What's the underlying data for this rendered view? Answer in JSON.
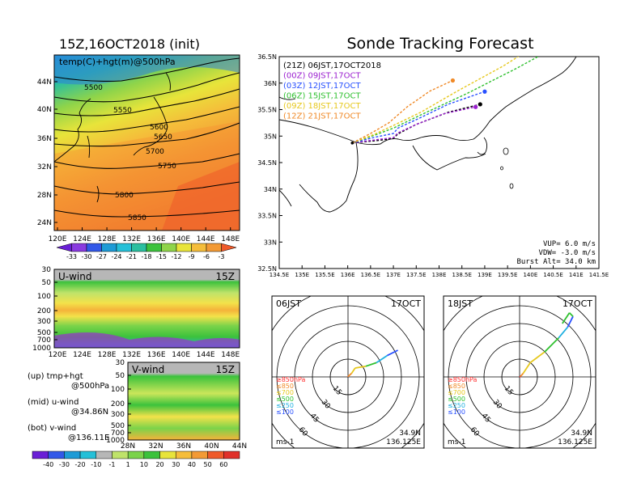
{
  "left_title": "15Z,16OCT2018 (init)",
  "right_title": "Sonde Tracking Forecast",
  "map500": {
    "label": "temp(C)+hgt(m)@500hPa",
    "lon_ticks": [
      "120E",
      "124E",
      "128E",
      "132E",
      "136E",
      "140E",
      "144E",
      "148E"
    ],
    "lat_ticks": [
      "44N",
      "40N",
      "36N",
      "32N",
      "28N",
      "24N"
    ],
    "contour_labels": [
      "5500",
      "5550",
      "5600",
      "5650",
      "5700",
      "5750",
      "5800",
      "5850"
    ]
  },
  "temp_colorbar": [
    "-33",
    "-30",
    "-27",
    "-24",
    "-21",
    "-18",
    "-15",
    "-12",
    "-9",
    "-6",
    "-3"
  ],
  "uwind": {
    "label": "U-wind",
    "time": "15Z",
    "p_ticks": [
      "30",
      "50",
      "100",
      "200",
      "300",
      "500",
      "700",
      "1000"
    ],
    "lon_ticks": [
      "120E",
      "124E",
      "128E",
      "132E",
      "136E",
      "140E",
      "144E",
      "148E"
    ]
  },
  "vwind": {
    "label": "V-wind",
    "time": "15Z",
    "p_ticks": [
      "30",
      "50",
      "100",
      "200",
      "300",
      "500",
      "700",
      "1000"
    ],
    "lat_ticks": [
      "28N",
      "32N",
      "36N",
      "40N",
      "44N"
    ]
  },
  "legend_notes": [
    {
      "line1": "(up) tmp+hgt",
      "line2": "@500hPa"
    },
    {
      "line1": "(mid) u-wind",
      "line2": "@34.86N"
    },
    {
      "line1": "(bot) v-wind",
      "line2": "@136.11E"
    }
  ],
  "wind_colorbar": [
    "-40",
    "-30",
    "-20",
    "-10",
    "-1",
    "1",
    "10",
    "20",
    "30",
    "40",
    "50",
    "60"
  ],
  "track_map": {
    "lat_ticks": [
      "36.5N",
      "36N",
      "35.5N",
      "35N",
      "34.5N",
      "34N",
      "33.5N",
      "33N",
      "32.5N"
    ],
    "lon_ticks": [
      "134.5E",
      "135E",
      "135.5E",
      "136E",
      "136.5E",
      "137E",
      "137.5E",
      "138E",
      "138.5E",
      "139E",
      "139.5E",
      "140E",
      "140.5E",
      "141E",
      "141.5E"
    ],
    "launches": [
      {
        "label": "(21Z)  06JST,17OCT2018",
        "color": "#000000"
      },
      {
        "label": "(00Z)  09JST,17OCT",
        "color": "#9b1fd0"
      },
      {
        "label": "(03Z)  12JST,17OCT",
        "color": "#2850ff"
      },
      {
        "label": "(06Z)  15JST,17OCT",
        "color": "#2fc02f"
      },
      {
        "label": "(09Z)  18JST,17OCT",
        "color": "#e6c81e"
      },
      {
        "label": "(12Z)  21JST,17OCT",
        "color": "#f08a28"
      }
    ],
    "params": {
      "vup": "VUP=  6.0 m/s",
      "vdw": "VDW= -3.0 m/s",
      "burst": "Burst Alt=  34.0 km"
    }
  },
  "hodographs": [
    {
      "time": "06JST",
      "date": "17OCT",
      "lat": "34.9N",
      "lon": "136.125E",
      "unit": "ms-1"
    },
    {
      "time": "18JST",
      "date": "17OCT",
      "lat": "34.9N",
      "lon": "136.125E",
      "unit": "ms-1"
    }
  ],
  "hodo_ring_labels": [
    "15",
    "30",
    "45",
    "60"
  ],
  "hodo_levels": [
    {
      "label": "≥850hPa",
      "color": "#ff3030"
    },
    {
      "label": "≤850",
      "color": "#f08a28"
    },
    {
      "label": "≤700",
      "color": "#e6c81e"
    },
    {
      "label": "≤500",
      "color": "#2fc02f"
    },
    {
      "label": "≤250",
      "color": "#20b0e0"
    },
    {
      "label": "≤100",
      "color": "#2850ff"
    }
  ],
  "chart_data": {
    "type": "line",
    "title": "Sonde Tracking Forecast",
    "x_range": [
      134.5,
      141.5
    ],
    "y_range": [
      32.5,
      36.5
    ],
    "launch_point": [
      136.1,
      34.87
    ],
    "series": [
      {
        "name": "(21Z) 06JST,17OCT2018",
        "x": [
          136.1,
          136.7,
          137.0,
          137.1,
          137.5,
          138.2,
          138.9
        ],
        "y": [
          34.87,
          34.92,
          34.96,
          35.04,
          35.22,
          35.45,
          35.6
        ]
      },
      {
        "name": "(00Z) 09JST,17OCT",
        "x": [
          136.1,
          136.7,
          137.0,
          137.1,
          137.5,
          138.1,
          138.8
        ],
        "y": [
          34.87,
          34.94,
          34.97,
          35.06,
          35.22,
          35.42,
          35.55
        ]
      },
      {
        "name": "(03Z) 12JST,17OCT",
        "x": [
          136.1,
          136.6,
          137.0,
          137.1,
          137.6,
          138.2,
          139.0
        ],
        "y": [
          34.87,
          34.98,
          35.05,
          35.15,
          35.35,
          35.6,
          35.84
        ]
      },
      {
        "name": "(06Z) 15JST,17OCT",
        "x": [
          136.1,
          136.6,
          137.0,
          137.6,
          138.6,
          139.7,
          140.8
        ],
        "y": [
          34.87,
          35.02,
          35.15,
          35.4,
          35.8,
          36.28,
          36.8
        ]
      },
      {
        "name": "(09Z) 18JST,17OCT",
        "x": [
          136.1,
          136.6,
          137.0,
          137.6,
          138.4,
          139.4,
          140.4
        ],
        "y": [
          34.87,
          35.04,
          35.2,
          35.45,
          35.85,
          36.32,
          36.86
        ]
      },
      {
        "name": "(12Z) 21JST,17OCT",
        "x": [
          136.1,
          136.5,
          136.9,
          137.3,
          137.8,
          138.3
        ],
        "y": [
          34.87,
          35.05,
          35.25,
          35.55,
          35.85,
          36.05
        ]
      }
    ]
  }
}
